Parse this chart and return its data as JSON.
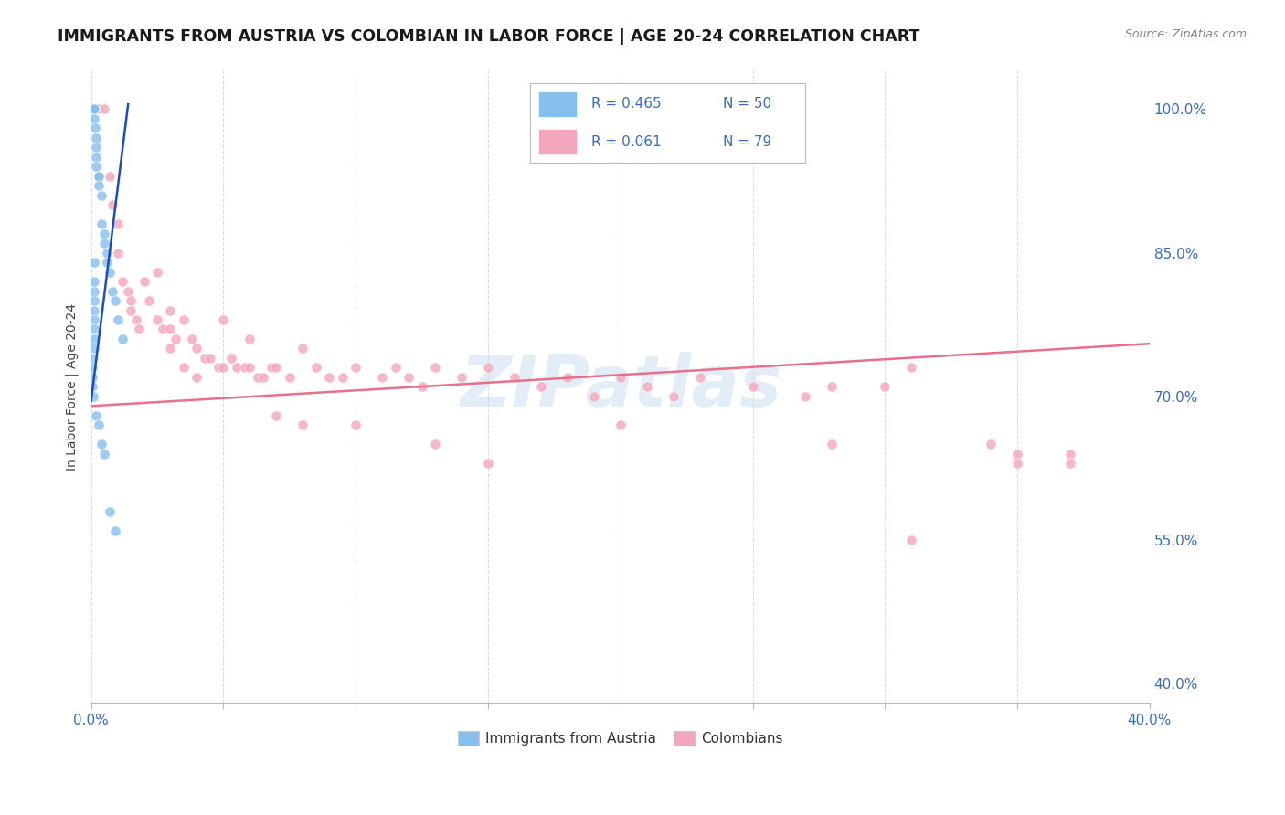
{
  "title": "IMMIGRANTS FROM AUSTRIA VS COLOMBIAN IN LABOR FORCE | AGE 20-24 CORRELATION CHART",
  "source": "Source: ZipAtlas.com",
  "ylabel": "In Labor Force | Age 20-24",
  "xlim": [
    0.0,
    0.4
  ],
  "ylim": [
    0.38,
    1.04
  ],
  "xticks": [
    0.0,
    0.05,
    0.1,
    0.15,
    0.2,
    0.25,
    0.3,
    0.35,
    0.4
  ],
  "xtick_labels": [
    "0.0%",
    "",
    "",
    "",
    "",
    "",
    "",
    "",
    "40.0%"
  ],
  "yticks_right": [
    0.4,
    0.55,
    0.7,
    0.85,
    1.0
  ],
  "ytick_labels_right": [
    "40.0%",
    "55.0%",
    "70.0%",
    "85.0%",
    "100.0%"
  ],
  "watermark": "ZIPatlas",
  "blue_color": "#85bfee",
  "pink_color": "#f4a7bc",
  "blue_line_color": "#1a4cc0",
  "pink_line_color": "#e8708a",
  "blue_x": [
    0.0005,
    0.0008,
    0.001,
    0.001,
    0.001,
    0.001,
    0.001,
    0.001,
    0.001,
    0.001,
    0.001,
    0.0015,
    0.002,
    0.002,
    0.002,
    0.002,
    0.003,
    0.003,
    0.003,
    0.004,
    0.004,
    0.005,
    0.005,
    0.006,
    0.006,
    0.007,
    0.008,
    0.009,
    0.01,
    0.012,
    0.001,
    0.001,
    0.001,
    0.001,
    0.001,
    0.001,
    0.001,
    0.001,
    0.001,
    0.0005,
    0.0005,
    0.0005,
    0.0005,
    0.0007,
    0.002,
    0.003,
    0.004,
    0.005,
    0.007,
    0.009
  ],
  "blue_y": [
    1.0,
    1.0,
    1.0,
    1.0,
    1.0,
    1.0,
    1.0,
    1.0,
    1.0,
    1.0,
    0.99,
    0.98,
    0.97,
    0.96,
    0.95,
    0.94,
    0.93,
    0.93,
    0.92,
    0.91,
    0.88,
    0.87,
    0.86,
    0.85,
    0.84,
    0.83,
    0.81,
    0.8,
    0.78,
    0.76,
    0.84,
    0.82,
    0.81,
    0.8,
    0.79,
    0.78,
    0.77,
    0.76,
    0.75,
    0.74,
    0.73,
    0.72,
    0.71,
    0.7,
    0.68,
    0.67,
    0.65,
    0.64,
    0.58,
    0.56
  ],
  "pink_x": [
    0.003,
    0.005,
    0.007,
    0.008,
    0.01,
    0.01,
    0.012,
    0.014,
    0.015,
    0.015,
    0.017,
    0.018,
    0.02,
    0.022,
    0.025,
    0.027,
    0.03,
    0.03,
    0.032,
    0.035,
    0.038,
    0.04,
    0.043,
    0.045,
    0.048,
    0.05,
    0.053,
    0.055,
    0.058,
    0.06,
    0.063,
    0.065,
    0.068,
    0.07,
    0.075,
    0.08,
    0.085,
    0.09,
    0.095,
    0.1,
    0.11,
    0.115,
    0.12,
    0.125,
    0.13,
    0.14,
    0.15,
    0.16,
    0.17,
    0.18,
    0.19,
    0.2,
    0.21,
    0.22,
    0.23,
    0.25,
    0.27,
    0.28,
    0.3,
    0.31,
    0.34,
    0.35,
    0.37,
    0.025,
    0.03,
    0.035,
    0.04,
    0.05,
    0.06,
    0.07,
    0.08,
    0.1,
    0.13,
    0.15,
    0.2,
    0.28,
    0.35,
    0.37,
    0.31
  ],
  "pink_y": [
    1.0,
    1.0,
    0.93,
    0.9,
    0.88,
    0.85,
    0.82,
    0.81,
    0.8,
    0.79,
    0.78,
    0.77,
    0.82,
    0.8,
    0.78,
    0.77,
    0.79,
    0.77,
    0.76,
    0.78,
    0.76,
    0.75,
    0.74,
    0.74,
    0.73,
    0.73,
    0.74,
    0.73,
    0.73,
    0.73,
    0.72,
    0.72,
    0.73,
    0.73,
    0.72,
    0.75,
    0.73,
    0.72,
    0.72,
    0.73,
    0.72,
    0.73,
    0.72,
    0.71,
    0.73,
    0.72,
    0.73,
    0.72,
    0.71,
    0.72,
    0.7,
    0.72,
    0.71,
    0.7,
    0.72,
    0.71,
    0.7,
    0.71,
    0.71,
    0.73,
    0.65,
    0.64,
    0.64,
    0.83,
    0.75,
    0.73,
    0.72,
    0.78,
    0.76,
    0.68,
    0.67,
    0.67,
    0.65,
    0.63,
    0.67,
    0.65,
    0.63,
    0.63,
    0.55
  ],
  "blue_trend_x": [
    0.0,
    0.014
  ],
  "blue_trend_y": [
    0.695,
    1.005
  ],
  "pink_trend_x": [
    0.0,
    0.4
  ],
  "pink_trend_y": [
    0.69,
    0.755
  ]
}
